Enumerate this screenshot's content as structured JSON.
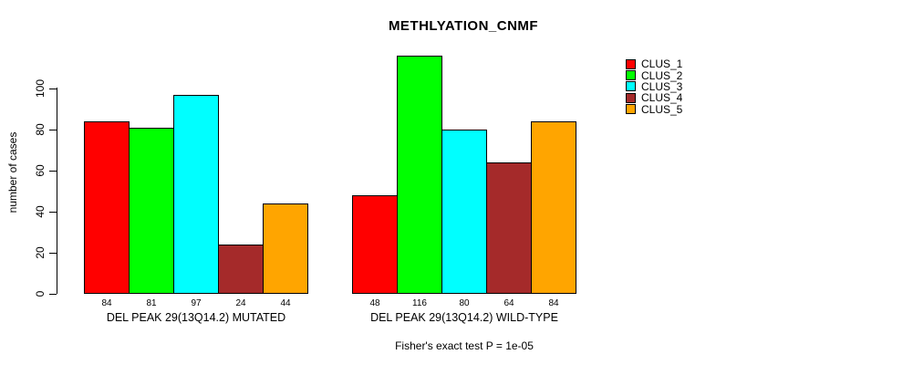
{
  "chart_data": {
    "type": "bar",
    "title": "METHLYATION_CNMF",
    "ylabel": "number of cases",
    "xlabel": "",
    "ylim": [
      0,
      118
    ],
    "yticks": [
      0,
      20,
      40,
      60,
      80,
      100
    ],
    "grid": false,
    "legend_position": "right",
    "series": [
      {
        "name": "CLUS_1",
        "color": "#FF0000"
      },
      {
        "name": "CLUS_2",
        "color": "#00FF00"
      },
      {
        "name": "CLUS_3",
        "color": "#00FFFF"
      },
      {
        "name": "CLUS_4",
        "color": "#A52A2A"
      },
      {
        "name": "CLUS_5",
        "color": "#FFA500"
      }
    ],
    "categories": [
      "DEL PEAK 29(13Q14.2) MUTATED",
      "DEL PEAK 29(13Q14.2) WILD-TYPE"
    ],
    "groups": [
      {
        "label": "DEL PEAK 29(13Q14.2) MUTATED",
        "values": [
          84,
          81,
          97,
          24,
          44
        ]
      },
      {
        "label": "DEL PEAK 29(13Q14.2) WILD-TYPE",
        "values": [
          48,
          116,
          80,
          64,
          84
        ]
      }
    ],
    "bar_value_labels_shown": true,
    "footnote": "Fisher's exact test P = 1e-05",
    "colors": {
      "background": "#FFFFFF",
      "bar_border": "#000000",
      "axis": "#000000",
      "text": "#000000"
    }
  }
}
